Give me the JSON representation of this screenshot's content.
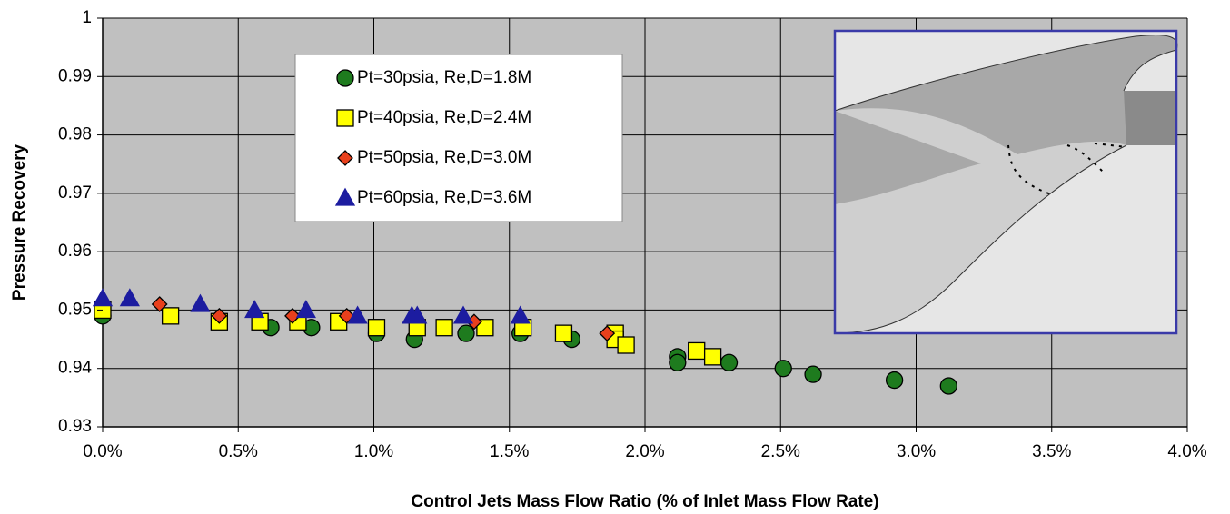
{
  "chart_data": {
    "type": "scatter",
    "x_label": "Control Jets Mass Flow Ratio (% of Inlet Mass Flow Rate)",
    "y_label": "Pressure Recovery",
    "xlim": [
      0,
      4
    ],
    "ylim": [
      0.93,
      1
    ],
    "xticks": [
      {
        "value": 0,
        "label": "0.0%"
      },
      {
        "value": 0.5,
        "label": "0.5%"
      },
      {
        "value": 1,
        "label": "1.0%"
      },
      {
        "value": 1.5,
        "label": "1.5%"
      },
      {
        "value": 2,
        "label": "2.0%"
      },
      {
        "value": 2.5,
        "label": "2.5%"
      },
      {
        "value": 3,
        "label": "3.0%"
      },
      {
        "value": 3.5,
        "label": "3.5%"
      },
      {
        "value": 4,
        "label": "4.0%"
      }
    ],
    "yticks": [
      0.93,
      0.94,
      0.95,
      0.96,
      0.97,
      0.98,
      0.99,
      1
    ],
    "grid": true,
    "series": [
      {
        "name": "Pt=30psia, Re,D=1.8M",
        "color": "#1e7b1e",
        "marker": "circle",
        "x": [
          0,
          0.62,
          0.77,
          1.01,
          1.15,
          1.34,
          1.54,
          1.73,
          2.12,
          2.12,
          2.31,
          2.51,
          2.62,
          2.92,
          3.12
        ],
        "values": [
          0.949,
          0.947,
          0.947,
          0.946,
          0.945,
          0.946,
          0.946,
          0.945,
          0.942,
          0.941,
          0.941,
          0.94,
          0.939,
          0.938,
          0.937
        ]
      },
      {
        "name": "Pt=40psia, Re,D=2.4M",
        "color": "#ffff00",
        "marker": "square",
        "x": [
          0,
          0.25,
          0.43,
          0.58,
          0.72,
          0.87,
          1.01,
          1.16,
          1.26,
          1.41,
          1.55,
          1.7,
          1.89,
          1.89,
          1.93,
          2.19,
          2.25
        ],
        "values": [
          0.95,
          0.949,
          0.948,
          0.948,
          0.948,
          0.948,
          0.947,
          0.947,
          0.947,
          0.947,
          0.947,
          0.946,
          0.946,
          0.945,
          0.944,
          0.943,
          0.942
        ]
      },
      {
        "name": "Pt=50psia, Re,D=3.0M",
        "color": "#e8401c",
        "marker": "diamond",
        "x": [
          0.21,
          0.43,
          0.7,
          0.9,
          1.37,
          1.86
        ],
        "values": [
          0.951,
          0.949,
          0.949,
          0.949,
          0.948,
          0.946
        ]
      },
      {
        "name": "Pt=60psia, Re,D=3.6M",
        "color": "#1c1ca0",
        "marker": "triangle",
        "x": [
          0,
          0.1,
          0.36,
          0.56,
          0.75,
          0.94,
          1.14,
          1.16,
          1.33,
          1.54
        ],
        "values": [
          0.952,
          0.952,
          0.951,
          0.95,
          0.95,
          0.949,
          0.949,
          0.949,
          0.949,
          0.949
        ]
      }
    ]
  }
}
